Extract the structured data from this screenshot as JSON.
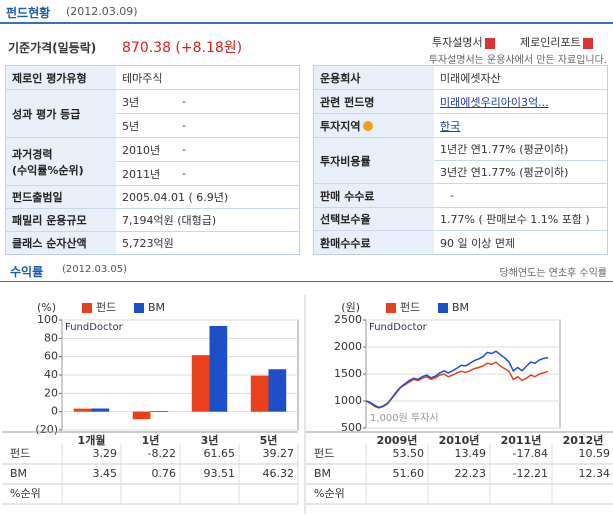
{
  "header": {
    "title": "펀드현황",
    "date": "(2012.03.09)"
  },
  "price": {
    "label": "기준가격(일등락)",
    "value": "870.38 (+8.18원)"
  },
  "links": [
    "투자설명서",
    "제로인리포트"
  ],
  "note": "투자설명서는 운용사에서 만든 자료입니다.",
  "left_table": [
    {
      "label": "제로인 평가유형",
      "value": "테마주식"
    },
    {
      "label": "성과 평가 등급",
      "lines": [
        [
          "3년",
          "-"
        ],
        [
          "5년",
          "-"
        ]
      ]
    },
    {
      "label": [
        "과거경력",
        "(수익률%순위)"
      ],
      "lines": [
        [
          "2010년",
          "-"
        ],
        [
          "2011년",
          "-"
        ]
      ]
    },
    {
      "label": "펀드출범일",
      "value": "2005.04.01 ( 6.9년)"
    },
    {
      "label": "패밀리 운용규모",
      "value": "7,194억원 (대형급)"
    },
    {
      "label": "클래스 순자산액",
      "value": "5,723억원"
    }
  ],
  "right_table": [
    {
      "label": "운용회사",
      "value": "미래에셋자산"
    },
    {
      "label": "관련 펀드명",
      "value": "미래에셋우리아이3억..."
    },
    {
      "label": "투자지역",
      "value": "한국"
    },
    {
      "label": "투자비용률",
      "lines": [
        "1년간 연1.77% (평균이하)",
        "3년간 연1.77% (평균이하)"
      ]
    },
    {
      "label": "판매 수수료",
      "value": "-"
    },
    {
      "label": "선택보수율",
      "value": "1.77% ( 판매보수 1.1% 포함 )"
    },
    {
      "label": "환매수수료",
      "value": "90 일 이상 면제"
    }
  ],
  "returns": {
    "title": "수익률",
    "date": "(2012.03.05)",
    "note": "당해연도는 연초후 수익률"
  },
  "chart_data": [
    {
      "type": "bar",
      "y_unit": "(%)",
      "annotation": "FundDoctor",
      "categories": [
        "1개월",
        "1년",
        "3년",
        "5년"
      ],
      "series": [
        {
          "name": "펀드",
          "color": "#e8401c",
          "values": [
            3.29,
            -8.22,
            61.65,
            39.27
          ]
        },
        {
          "name": "BM",
          "color": "#1f4fc8",
          "values": [
            3.45,
            0.76,
            93.51,
            46.32
          ]
        }
      ],
      "ylim": [
        -20,
        100
      ],
      "yticks": [
        {
          "value": -20,
          "label": "(20)"
        },
        0,
        20,
        40,
        60,
        80,
        100
      ],
      "grid": true,
      "table_rows": [
        "펀드",
        "BM",
        "%순위"
      ]
    },
    {
      "type": "line",
      "y_unit": "(원)",
      "annotations": [
        "FundDoctor",
        "1,000원 투자시"
      ],
      "series": [
        {
          "name": "펀드",
          "color": "#e8401c",
          "values": [
            1000,
            960,
            900,
            870,
            900,
            950,
            1050,
            1150,
            1250,
            1300,
            1350,
            1400,
            1380,
            1420,
            1450,
            1400,
            1430,
            1480,
            1500,
            1450,
            1480,
            1520,
            1550,
            1530,
            1560,
            1600,
            1620,
            1650,
            1700,
            1680,
            1720,
            1650,
            1600,
            1550,
            1400,
            1450,
            1380,
            1420,
            1480,
            1450,
            1500,
            1520,
            1550
          ]
        },
        {
          "name": "BM",
          "color": "#1f4fc8",
          "values": [
            1000,
            970,
            920,
            880,
            910,
            960,
            1060,
            1170,
            1260,
            1320,
            1380,
            1420,
            1400,
            1450,
            1480,
            1430,
            1460,
            1520,
            1560,
            1520,
            1560,
            1610,
            1660,
            1650,
            1700,
            1750,
            1780,
            1820,
            1900,
            1880,
            1920,
            1860,
            1800,
            1720,
            1560,
            1620,
            1560,
            1640,
            1720,
            1700,
            1760,
            1790,
            1800
          ]
        }
      ],
      "ylim": [
        500,
        2500
      ],
      "yticks": [
        500,
        1000,
        1500,
        2000,
        2500
      ],
      "grid": true,
      "table_rows": [
        "펀드",
        "BM",
        "%순위"
      ],
      "table_columns": [
        "2009년",
        "2010년",
        "2011년",
        "2012년"
      ],
      "table_values": [
        [
          "53.50",
          "13.49",
          "-17.84",
          "10.59"
        ],
        [
          "51.60",
          "22.23",
          "-12.21",
          "12.34"
        ]
      ]
    }
  ]
}
